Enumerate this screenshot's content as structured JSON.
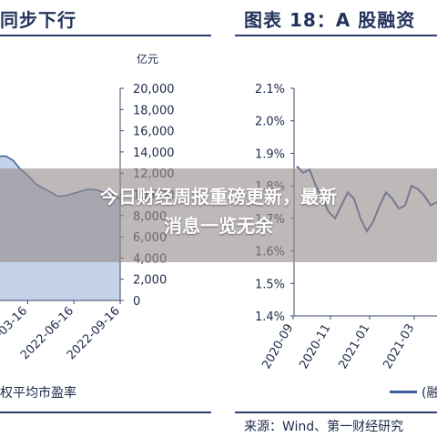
{
  "left_panel": {
    "title": "同步下行",
    "unit": "亿元",
    "legend": "权平均市盈率",
    "chart_data": {
      "type": "area",
      "y_ticks": [
        "20,000",
        "18,000",
        "16,000",
        "14,000",
        "12,000",
        "10,000",
        "8,000",
        "6,000",
        "4,000",
        "2,000",
        "0"
      ],
      "ylim": [
        0,
        20000
      ],
      "x_ticks": [
        "2022-03-16",
        "2022-06-16",
        "2022-09-16"
      ],
      "x": [
        "2022-02-01",
        "2022-02-15",
        "2022-03-01",
        "2022-03-16",
        "2022-04-01",
        "2022-04-15",
        "2022-05-01",
        "2022-05-15",
        "2022-06-01",
        "2022-06-16",
        "2022-07-01",
        "2022-07-15",
        "2022-08-01",
        "2022-08-15",
        "2022-09-01",
        "2022-09-16"
      ],
      "series": [
        {
          "values": [
            13600,
            13200,
            12400,
            11800,
            11000,
            10600,
            10200,
            9800,
            9900,
            10100,
            10300,
            10500,
            10400,
            10200,
            9900,
            9600
          ]
        }
      ]
    }
  },
  "right_panel": {
    "title": "图表 18：A 股融资",
    "legend": "(融",
    "source": "来源：Wind、第一财经研究",
    "chart_data": {
      "type": "line",
      "y_ticks": [
        "2.1%",
        "2.0%",
        "1.9%",
        "1.8%",
        "1.7%",
        "1.6%",
        "1.5%",
        "1.4%"
      ],
      "ylim": [
        1.4,
        2.1
      ],
      "x_ticks": [
        "2020-09",
        "2020-11",
        "2021-01",
        "2021-03"
      ],
      "series": [
        {
          "values": [
            1.86,
            1.84,
            1.85,
            1.8,
            1.76,
            1.72,
            1.7,
            1.74,
            1.78,
            1.76,
            1.7,
            1.66,
            1.69,
            1.74,
            1.78,
            1.76,
            1.73,
            1.74,
            1.8,
            1.79,
            1.77,
            1.74,
            1.75
          ]
        }
      ]
    }
  },
  "overlay": {
    "line1": "今日财经周报重磅更新，最新",
    "line2": "消息一览无余"
  },
  "colors": {
    "line": "#3f5f9c",
    "area_fill": "#c4d3ea",
    "title": "#23345c",
    "overlay": "#968c8c"
  }
}
